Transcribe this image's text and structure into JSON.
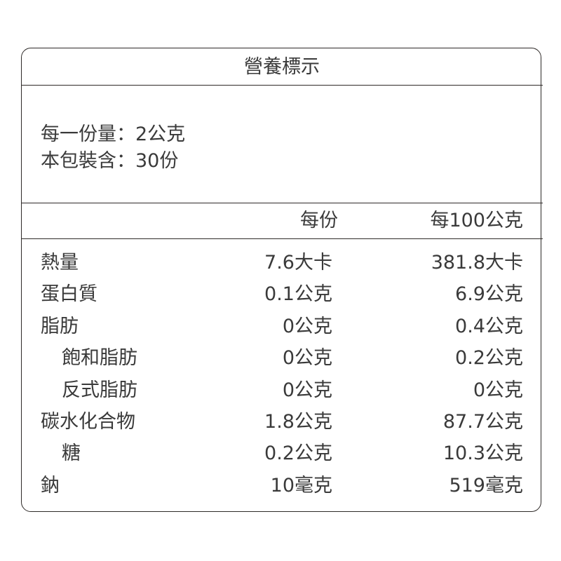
{
  "title": "營養標示",
  "serving": {
    "size": "每一份量：2公克",
    "count": "本包裝含：30份"
  },
  "header": {
    "per_serving": "每份",
    "per_100g": "每100公克"
  },
  "rows": [
    {
      "name": "熱量",
      "per_serving": "7.6大卡",
      "per_100g": "381.8大卡",
      "indent": false
    },
    {
      "name": "蛋白質",
      "per_serving": "0.1公克",
      "per_100g": "6.9公克",
      "indent": false
    },
    {
      "name": "脂肪",
      "per_serving": "0公克",
      "per_100g": "0.4公克",
      "indent": false
    },
    {
      "name": "飽和脂肪",
      "per_serving": "0公克",
      "per_100g": "0.2公克",
      "indent": true
    },
    {
      "name": "反式脂肪",
      "per_serving": "0公克",
      "per_100g": "0公克",
      "indent": true
    },
    {
      "name": "碳水化合物",
      "per_serving": "1.8公克",
      "per_100g": "87.7公克",
      "indent": false
    },
    {
      "name": "糖",
      "per_serving": "0.2公克",
      "per_100g": "10.3公克",
      "indent": true
    },
    {
      "name": "鈉",
      "per_serving": "10毫克",
      "per_100g": "519毫克",
      "indent": false
    }
  ]
}
